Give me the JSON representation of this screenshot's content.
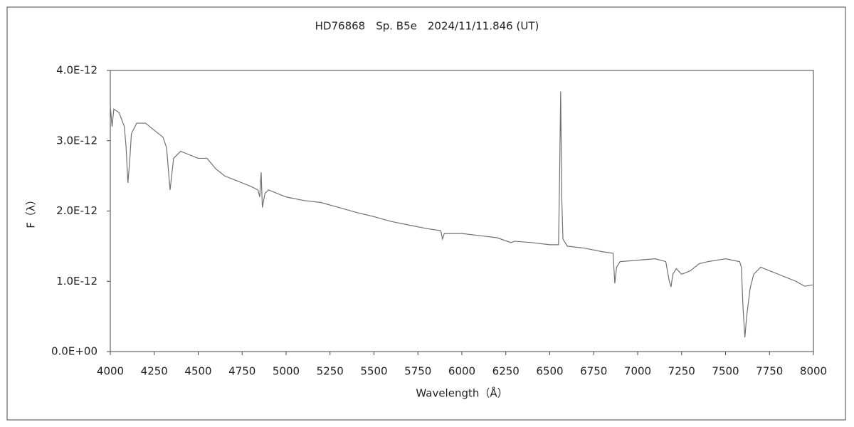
{
  "chart_data": {
    "type": "line",
    "title": "HD76868　Sp. B5e　2024/11/11.846 (UT)",
    "x_label": "Wavelength（Å）",
    "y_label": "F（λ）",
    "color": "#707070",
    "x": [
      4000,
      4010,
      4020,
      4050,
      4080,
      4090,
      4100,
      4110,
      4120,
      4150,
      4200,
      4250,
      4300,
      4320,
      4340,
      4360,
      4400,
      4450,
      4500,
      4550,
      4600,
      4650,
      4700,
      4750,
      4800,
      4840,
      4850,
      4858,
      4865,
      4880,
      4900,
      4950,
      5000,
      5100,
      5200,
      5300,
      5400,
      5500,
      5600,
      5700,
      5800,
      5880,
      5890,
      5900,
      6000,
      6100,
      6200,
      6280,
      6300,
      6400,
      6500,
      6550,
      6556,
      6562,
      6568,
      6575,
      6600,
      6700,
      6800,
      6860,
      6870,
      6880,
      6900,
      7000,
      7100,
      7160,
      7180,
      7190,
      7200,
      7220,
      7250,
      7300,
      7350,
      7400,
      7500,
      7580,
      7590,
      7600,
      7610,
      7620,
      7640,
      7660,
      7700,
      7750,
      7800,
      7850,
      7900,
      7950,
      8000
    ],
    "values": [
      3.5e-12,
      3.2e-12,
      3.45e-12,
      3.4e-12,
      3.2e-12,
      2.9e-12,
      2.4e-12,
      2.7e-12,
      3.1e-12,
      3.25e-12,
      3.25e-12,
      3.15e-12,
      3.05e-12,
      2.9e-12,
      2.3e-12,
      2.75e-12,
      2.85e-12,
      2.8e-12,
      2.75e-12,
      2.75e-12,
      2.6e-12,
      2.5e-12,
      2.45e-12,
      2.4e-12,
      2.35e-12,
      2.3e-12,
      2.2e-12,
      2.55e-12,
      2.05e-12,
      2.25e-12,
      2.3e-12,
      2.25e-12,
      2.2e-12,
      2.15e-12,
      2.12e-12,
      2.05e-12,
      1.98e-12,
      1.92e-12,
      1.85e-12,
      1.8e-12,
      1.75e-12,
      1.72e-12,
      1.6e-12,
      1.68e-12,
      1.68e-12,
      1.65e-12,
      1.62e-12,
      1.55e-12,
      1.57e-12,
      1.55e-12,
      1.52e-12,
      1.52e-12,
      2.5e-12,
      3.7e-12,
      2.2e-12,
      1.6e-12,
      1.5e-12,
      1.47e-12,
      1.42e-12,
      1.4e-12,
      9.7e-13,
      1.2e-12,
      1.28e-12,
      1.3e-12,
      1.32e-12,
      1.28e-12,
      1e-12,
      9.2e-13,
      1.1e-12,
      1.18e-12,
      1.1e-12,
      1.15e-12,
      1.25e-12,
      1.28e-12,
      1.32e-12,
      1.28e-12,
      1.2e-12,
      6e-13,
      2e-13,
      5e-13,
      9e-13,
      1.1e-12,
      1.2e-12,
      1.15e-12,
      1.1e-12,
      1.05e-12,
      1e-12,
      9.3e-13,
      9.5e-13
    ],
    "xlim": [
      4000,
      8000
    ],
    "xticks": [
      4000,
      4250,
      4500,
      4750,
      5000,
      5250,
      5500,
      5750,
      6000,
      6250,
      6500,
      6750,
      7000,
      7250,
      7500,
      7750,
      8000
    ],
    "ylim": [
      0,
      4e-12
    ],
    "yticks": [
      {
        "value": 0,
        "label": "0.0E+00"
      },
      {
        "value": 1e-12,
        "label": "1.0E-12"
      },
      {
        "value": 2e-12,
        "label": "2.0E-12"
      },
      {
        "value": 3e-12,
        "label": "3.0E-12"
      },
      {
        "value": 4e-12,
        "label": "4.0E-12"
      }
    ]
  }
}
